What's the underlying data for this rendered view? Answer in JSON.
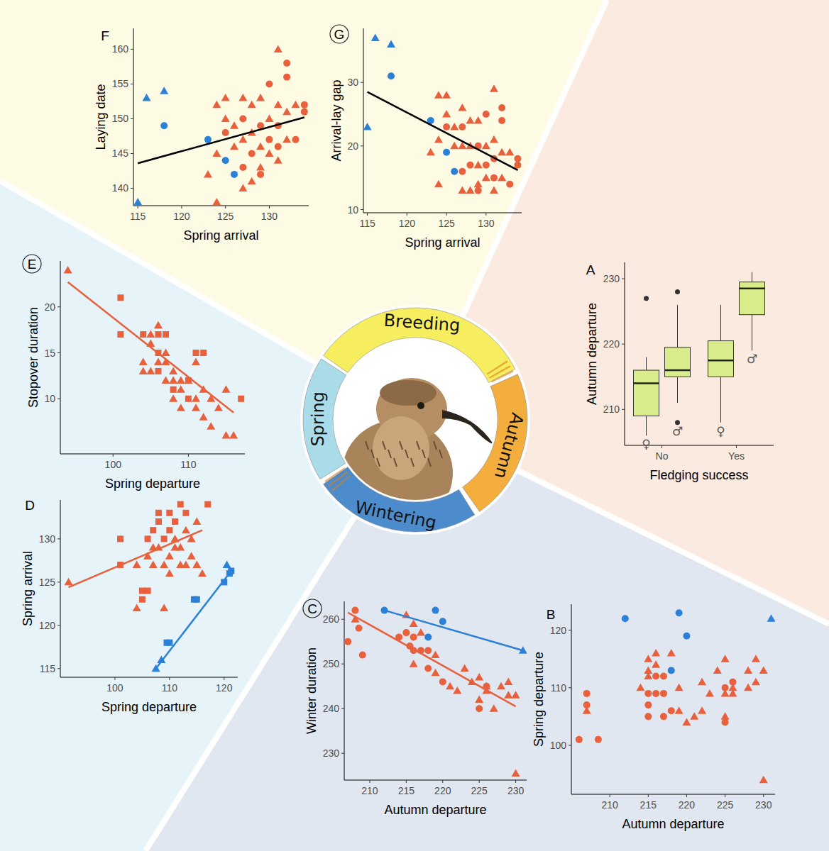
{
  "diagram": {
    "stages": [
      "Breeding",
      "Autumn",
      "Wintering",
      "Spring"
    ]
  },
  "chart_data": [
    {
      "type": "box",
      "title": "A",
      "x_label": "Fledging success",
      "y_label": "Autumn departure",
      "categories": [
        "No",
        "Yes"
      ],
      "ylim": [
        204.5,
        232.5
      ],
      "yticks": [
        210,
        220,
        230
      ],
      "color": "#d9ec8c",
      "boxes": [
        {
          "category": "No",
          "label": "♀",
          "whisker_low": 206,
          "q1": 209,
          "median": 214,
          "q3": 216,
          "whisker_high": 218,
          "outliers": [
            227
          ]
        },
        {
          "category": "No",
          "label": "♂",
          "whisker_low": 211,
          "q1": 215,
          "median": 216,
          "q3": 219.5,
          "whisker_high": 226,
          "outliers": [
            228,
            208
          ]
        },
        {
          "category": "Yes",
          "label": "♀",
          "whisker_low": 208,
          "q1": 215,
          "median": 217.5,
          "q3": 220.5,
          "whisker_high": 226,
          "outliers": []
        },
        {
          "category": "Yes",
          "label": "♂",
          "whisker_low": 219,
          "q1": 224.5,
          "median": 228.5,
          "q3": 229.5,
          "whisker_high": 231,
          "outliers": []
        }
      ]
    },
    {
      "type": "scatter",
      "title": "B",
      "x_label": "Autumn departure",
      "y_label": "Spring departure",
      "xlim": [
        205,
        231.5
      ],
      "xticks": [
        210,
        215,
        220,
        225,
        230
      ],
      "ylim": [
        91.5,
        124.5
      ],
      "yticks": [
        100,
        110,
        120
      ],
      "series": [
        {
          "type": "scatter",
          "color": "#e8603c",
          "marker": "circle",
          "x": [
            206,
            207,
            207,
            208.5,
            215,
            215,
            215,
            216,
            217,
            217,
            216,
            217,
            218,
            225,
            225,
            226
          ],
          "values": [
            101,
            109,
            107,
            101,
            107,
            105,
            109,
            109,
            109,
            112,
            112,
            105,
            106,
            110,
            104,
            111
          ]
        },
        {
          "type": "scatter",
          "color": "#e8603c",
          "marker": "triangle",
          "x": [
            207,
            214,
            215,
            215,
            215,
            216,
            216,
            219,
            219,
            220,
            221,
            222,
            222,
            223,
            224,
            225,
            225,
            225,
            226,
            226,
            228,
            228,
            229,
            229,
            230,
            230,
            218
          ],
          "values": [
            106,
            110,
            112,
            113,
            115,
            116,
            114,
            106,
            110,
            104,
            105,
            106,
            111,
            109,
            113,
            115,
            109,
            105,
            109,
            110,
            110,
            113,
            111,
            115,
            113,
            94,
            116
          ]
        },
        {
          "type": "scatter",
          "color": "#2b80d8",
          "marker": "circle",
          "x": [
            212,
            219,
            220,
            218
          ],
          "values": [
            122,
            123,
            119,
            113
          ]
        },
        {
          "type": "scatter",
          "color": "#2b80d8",
          "marker": "triangle",
          "x": [
            231
          ],
          "values": [
            122
          ]
        }
      ]
    },
    {
      "type": "scatter",
      "title": "C",
      "x_label": "Autumn departure",
      "y_label": "Winter duration",
      "xlim": [
        206.5,
        231.5
      ],
      "xticks": [
        210,
        215,
        220,
        225,
        230
      ],
      "ylim": [
        224,
        264
      ],
      "yticks": [
        230,
        240,
        250,
        260
      ],
      "series": [
        {
          "type": "scatter",
          "color": "#e8603c",
          "marker": "circle",
          "x": [
            207,
            208,
            208.5,
            209,
            215,
            215.5,
            216,
            216,
            217,
            218,
            214,
            218,
            220,
            225,
            226
          ],
          "values": [
            255,
            262,
            258,
            252,
            257,
            254,
            256,
            253,
            253,
            253,
            256,
            249,
            246,
            240,
            245
          ]
        },
        {
          "type": "scatter",
          "color": "#e8603c",
          "marker": "triangle",
          "x": [
            208,
            215,
            216,
            216,
            217,
            219,
            219,
            221,
            222,
            223,
            224,
            225,
            225,
            226,
            226,
            227,
            228,
            229,
            229,
            230,
            230
          ],
          "values": [
            260,
            261,
            259,
            250,
            257,
            252,
            248,
            245,
            244,
            249,
            246,
            247,
            242,
            245,
            244,
            240,
            245,
            246,
            243,
            243,
            225.5
          ]
        },
        {
          "type": "line",
          "color": "#e8603c",
          "x": [
            207,
            230
          ],
          "values": [
            261.5,
            240.5
          ]
        },
        {
          "type": "scatter",
          "color": "#2b80d8",
          "marker": "circle",
          "x": [
            212,
            219,
            218,
            220
          ],
          "values": [
            262,
            262,
            256,
            259.5
          ]
        },
        {
          "type": "scatter",
          "color": "#2b80d8",
          "marker": "triangle",
          "x": [
            231
          ],
          "values": [
            253
          ]
        },
        {
          "type": "line",
          "color": "#2b80d8",
          "x": [
            212,
            231
          ],
          "values": [
            262,
            253
          ]
        }
      ]
    },
    {
      "type": "scatter",
      "title": "D",
      "x_label": "Spring departure",
      "y_label": "Spring arrival",
      "xlim": [
        90,
        122.5
      ],
      "xticks": [
        100,
        110,
        120
      ],
      "ylim": [
        114,
        134.5
      ],
      "yticks": [
        115,
        120,
        125,
        130
      ],
      "series": [
        {
          "type": "scatter",
          "color": "#e8603c",
          "marker": "square",
          "x": [
            101,
            101,
            105,
            105,
            106,
            107,
            108,
            108,
            109,
            110,
            110,
            111,
            112,
            113,
            117,
            106
          ],
          "values": [
            127,
            130,
            124,
            123,
            124,
            131,
            133,
            132,
            130,
            133,
            131,
            132,
            134,
            133,
            134,
            130
          ]
        },
        {
          "type": "scatter",
          "color": "#e8603c",
          "marker": "triangle",
          "x": [
            91.5,
            104,
            104,
            106,
            107,
            108,
            109,
            110,
            110,
            109,
            111,
            112,
            113,
            113,
            114,
            114,
            115,
            115,
            116,
            111,
            112,
            107
          ],
          "values": [
            125,
            122,
            127,
            128,
            127,
            129,
            127,
            126,
            128,
            122,
            130,
            129,
            131,
            127,
            130,
            128,
            132,
            127,
            126,
            129,
            127,
            129
          ]
        },
        {
          "type": "line",
          "color": "#e8603c",
          "x": [
            91.5,
            116
          ],
          "values": [
            124.4,
            131
          ]
        },
        {
          "type": "scatter",
          "color": "#2b80d8",
          "marker": "triangle",
          "x": [
            107.5,
            108.5,
            120.5
          ],
          "values": [
            115,
            116,
            127
          ]
        },
        {
          "type": "scatter",
          "color": "#2b80d8",
          "marker": "square",
          "x": [
            109.5,
            110,
            114.5,
            115,
            120,
            121,
            121.3
          ],
          "values": [
            118,
            118,
            123,
            123,
            125,
            126,
            126.3
          ]
        },
        {
          "type": "line",
          "color": "#2b80d8",
          "x": [
            107.5,
            121.3
          ],
          "values": [
            115,
            126.3
          ]
        }
      ]
    },
    {
      "type": "scatter",
      "title": "E",
      "x_label": "Spring departure",
      "y_label": "Stopover duration",
      "xlim": [
        93,
        117.5
      ],
      "xticks": [
        100,
        110
      ],
      "ylim": [
        4,
        25
      ],
      "yticks": [
        10,
        15,
        20
      ],
      "series": [
        {
          "type": "scatter",
          "color": "#e8603c",
          "marker": "square",
          "x": [
            101,
            101,
            104,
            106,
            107,
            106,
            106,
            110,
            110,
            111,
            112,
            117,
            108
          ],
          "values": [
            21,
            17,
            17,
            17,
            17,
            13,
            15,
            12,
            10,
            15,
            15,
            10,
            11
          ]
        },
        {
          "type": "scatter",
          "color": "#e8603c",
          "marker": "triangle",
          "x": [
            94,
            105,
            105,
            106,
            107,
            105,
            104,
            107,
            108,
            108,
            109,
            109,
            110,
            108,
            111,
            111,
            111,
            112,
            113,
            113,
            114,
            115,
            115,
            116,
            107,
            109,
            112,
            106,
            104
          ],
          "values": [
            24,
            17,
            16,
            18,
            15,
            13,
            13,
            14,
            13,
            12,
            12,
            11,
            12,
            10,
            10,
            9,
            14,
            8,
            10,
            7,
            9,
            11,
            6,
            6,
            12,
            9,
            11,
            14,
            14
          ]
        },
        {
          "type": "line",
          "color": "#e8603c",
          "x": [
            94,
            116
          ],
          "values": [
            22.7,
            8.5
          ]
        }
      ]
    },
    {
      "type": "scatter",
      "title": "F",
      "x_label": "Spring arrival",
      "y_label": "Laying date",
      "xlim": [
        114.5,
        134.5
      ],
      "xticks": [
        115,
        120,
        125,
        130
      ],
      "ylim": [
        137.5,
        163
      ],
      "yticks": [
        140,
        145,
        150,
        155,
        160
      ],
      "series": [
        {
          "type": "scatter",
          "color": "#e8603c",
          "marker": "triangle",
          "x": [
            123,
            124,
            124,
            124,
            125,
            126,
            126,
            127,
            127,
            127,
            128,
            128,
            128,
            129,
            129,
            129,
            130,
            130,
            131,
            131,
            131,
            132,
            132,
            133,
            125
          ],
          "values": [
            142,
            138,
            145,
            152,
            150,
            149,
            146,
            140,
            153,
            147,
            141,
            152,
            148,
            143,
            146,
            153,
            145,
            150,
            160,
            152,
            144,
            147,
            151,
            152,
            153
          ]
        },
        {
          "type": "scatter",
          "color": "#e8603c",
          "marker": "circle",
          "x": [
            125,
            127,
            127,
            128,
            129,
            129,
            130,
            131,
            131,
            132,
            132,
            133,
            134,
            134,
            130
          ],
          "values": [
            148,
            143,
            150,
            145,
            149,
            142,
            155,
            146,
            149,
            158,
            156,
            147,
            152,
            151,
            147
          ]
        },
        {
          "type": "scatter",
          "color": "#2b80d8",
          "marker": "triangle",
          "x": [
            115,
            116,
            118
          ],
          "values": [
            138,
            153,
            154
          ]
        },
        {
          "type": "scatter",
          "color": "#2b80d8",
          "marker": "circle",
          "x": [
            118,
            123,
            125,
            126
          ],
          "values": [
            149,
            147,
            144,
            142
          ]
        },
        {
          "type": "line",
          "color": "#000000",
          "x": [
            115,
            134
          ],
          "values": [
            143.6,
            150.2
          ]
        }
      ]
    },
    {
      "type": "scatter",
      "title": "G",
      "x_label": "Spring arrival",
      "y_label": "Arrival-lay gap",
      "xlim": [
        114.5,
        134.5
      ],
      "xticks": [
        115,
        120,
        125,
        130
      ],
      "ylim": [
        9.5,
        38.5
      ],
      "yticks": [
        10,
        20,
        30
      ],
      "series": [
        {
          "type": "scatter",
          "color": "#e8603c",
          "marker": "triangle",
          "x": [
            123,
            124,
            124,
            124,
            125,
            126,
            126,
            127,
            127,
            127,
            128,
            128,
            128,
            129,
            129,
            129,
            130,
            130,
            131,
            131,
            131,
            132,
            132,
            133,
            125
          ],
          "values": [
            19,
            14,
            21,
            28,
            25,
            23,
            20,
            13,
            26,
            20,
            13,
            24,
            20,
            14,
            17,
            24,
            15,
            20,
            29,
            21,
            13,
            15,
            19,
            19,
            28
          ]
        },
        {
          "type": "scatter",
          "color": "#e8603c",
          "marker": "circle",
          "x": [
            125,
            127,
            127,
            128,
            129,
            129,
            130,
            131,
            131,
            132,
            132,
            133,
            134,
            134,
            130
          ],
          "values": [
            23,
            16,
            23,
            17,
            20,
            13,
            25,
            15,
            18,
            26,
            24,
            14,
            18,
            17,
            17
          ]
        },
        {
          "type": "scatter",
          "color": "#2b80d8",
          "marker": "triangle",
          "x": [
            115,
            116,
            118
          ],
          "values": [
            23,
            37,
            36
          ]
        },
        {
          "type": "scatter",
          "color": "#2b80d8",
          "marker": "circle",
          "x": [
            118,
            123,
            125,
            126
          ],
          "values": [
            31,
            24,
            19,
            16
          ]
        },
        {
          "type": "line",
          "color": "#000000",
          "x": [
            115,
            134
          ],
          "values": [
            28.5,
            16.2
          ]
        }
      ]
    }
  ]
}
